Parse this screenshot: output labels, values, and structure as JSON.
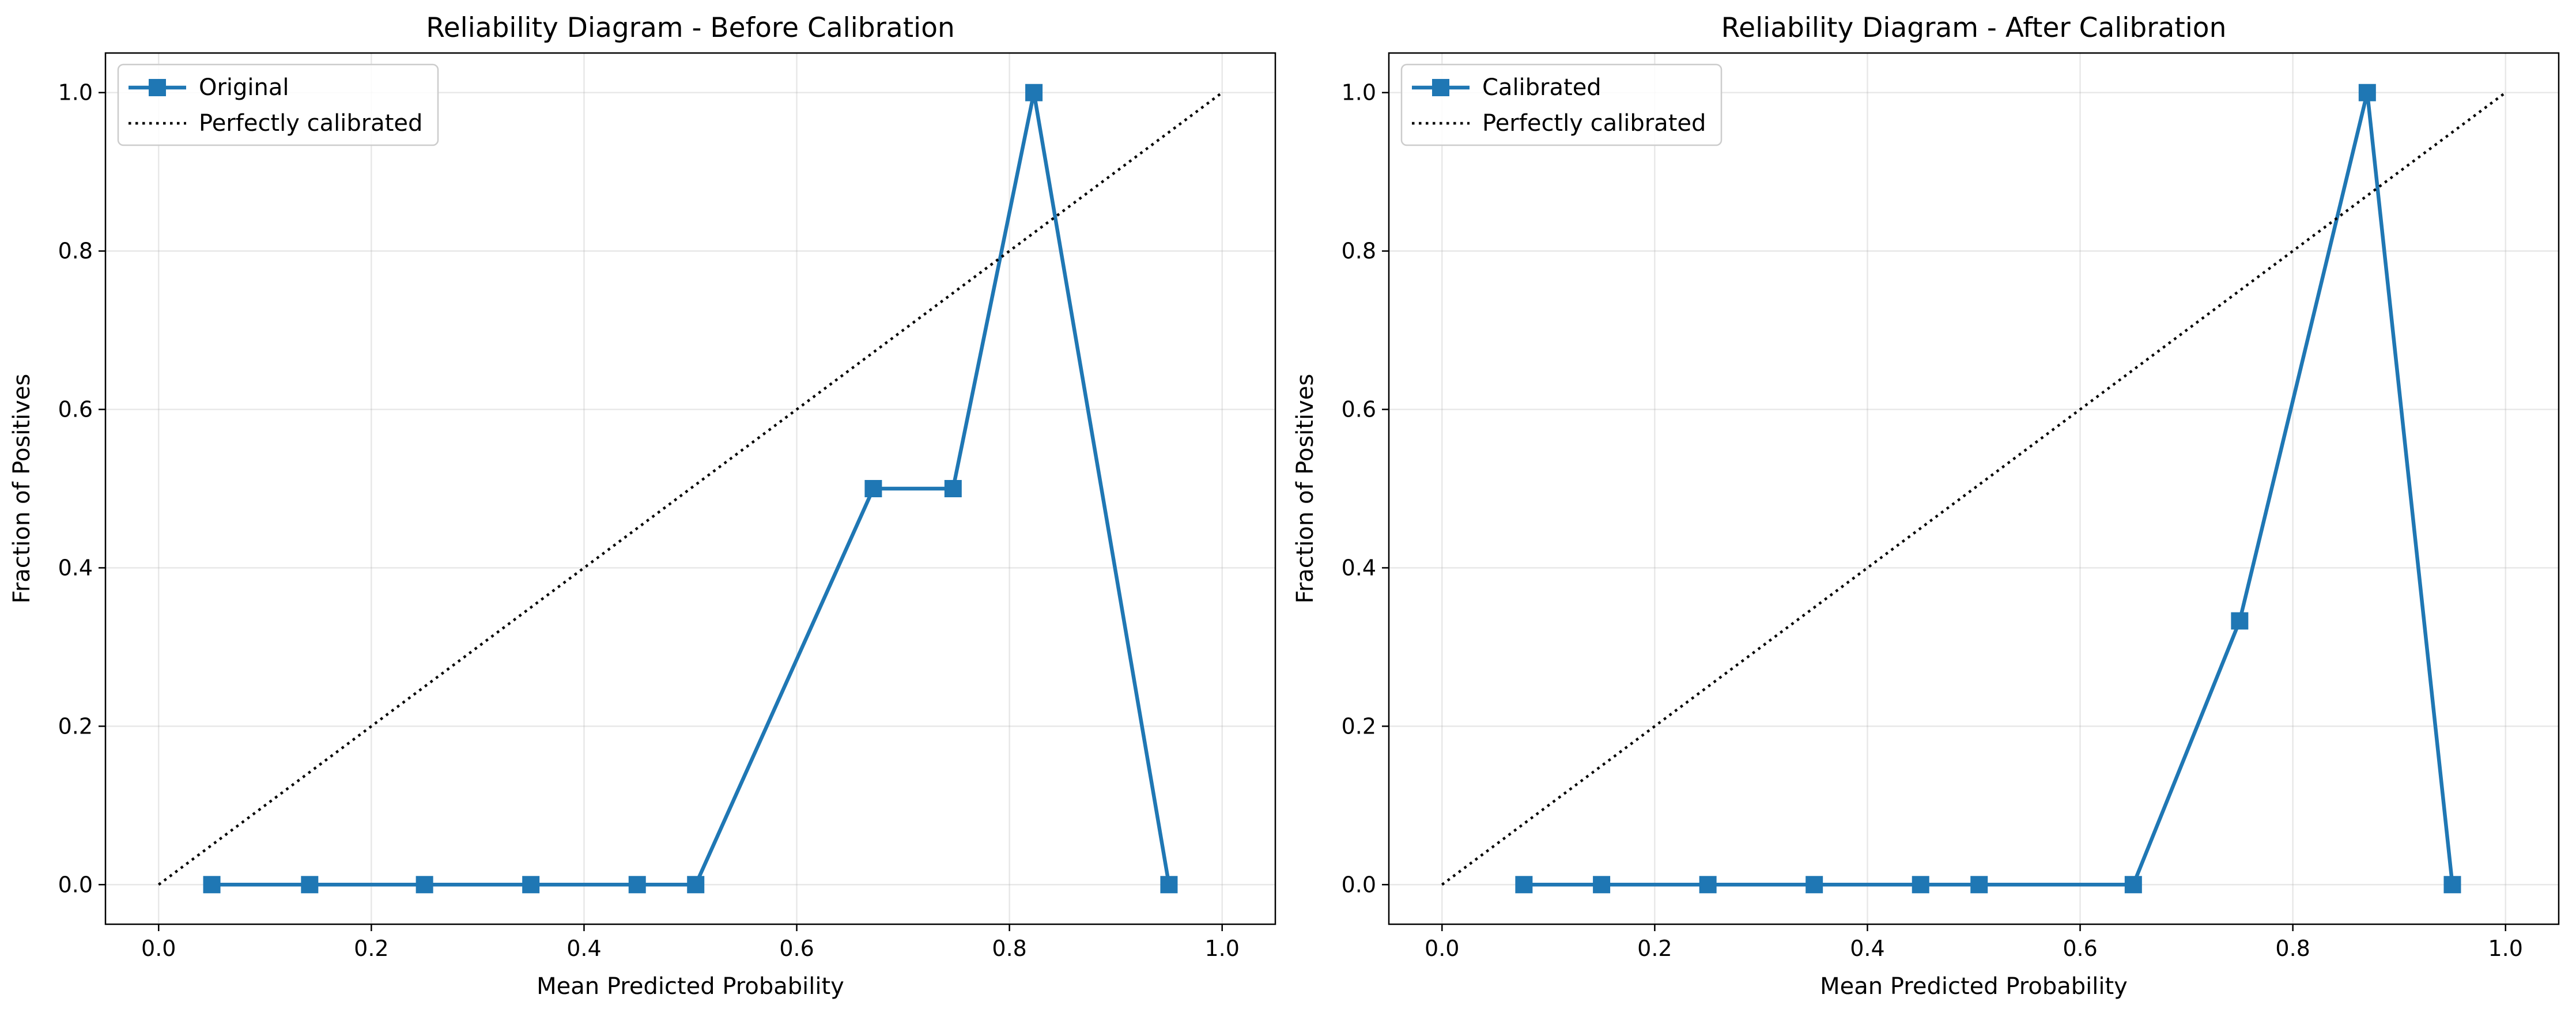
{
  "chart_data": [
    {
      "type": "line",
      "title": "Reliability Diagram - Before Calibration",
      "xlabel": "Mean Predicted Probability",
      "ylabel": "Fraction of Positives",
      "xlim": [
        -0.05,
        1.05
      ],
      "ylim": [
        -0.05,
        1.05
      ],
      "xticks": [
        "0.0",
        "0.2",
        "0.4",
        "0.6",
        "0.8",
        "1.0"
      ],
      "yticks": [
        "0.0",
        "0.2",
        "0.4",
        "0.6",
        "0.8",
        "1.0"
      ],
      "grid": true,
      "legend_position": "upper-left",
      "series": [
        {
          "name": "Original",
          "style": "solid-square-markers",
          "color": "#1f77b4",
          "x": [
            0.05,
            0.142,
            0.25,
            0.35,
            0.45,
            0.505,
            0.672,
            0.747,
            0.823,
            0.95
          ],
          "y": [
            0.0,
            0.0,
            0.0,
            0.0,
            0.0,
            0.0,
            0.5,
            0.5,
            1.0,
            0.0
          ]
        },
        {
          "name": "Perfectly calibrated",
          "style": "dotted",
          "color": "#000000",
          "x": [
            0.0,
            1.0
          ],
          "y": [
            0.0,
            1.0
          ]
        }
      ]
    },
    {
      "type": "line",
      "title": "Reliability Diagram - After Calibration",
      "xlabel": "Mean Predicted Probability",
      "ylabel": "Fraction of Positives",
      "xlim": [
        -0.05,
        1.05
      ],
      "ylim": [
        -0.05,
        1.05
      ],
      "xticks": [
        "0.0",
        "0.2",
        "0.4",
        "0.6",
        "0.8",
        "1.0"
      ],
      "yticks": [
        "0.0",
        "0.2",
        "0.4",
        "0.6",
        "0.8",
        "1.0"
      ],
      "grid": true,
      "legend_position": "upper-left",
      "series": [
        {
          "name": "Calibrated",
          "style": "solid-square-markers",
          "color": "#1f77b4",
          "x": [
            0.077,
            0.15,
            0.25,
            0.35,
            0.45,
            0.505,
            0.65,
            0.75,
            0.87,
            0.95
          ],
          "y": [
            0.0,
            0.0,
            0.0,
            0.0,
            0.0,
            0.0,
            0.0,
            0.333,
            1.0,
            0.0
          ]
        },
        {
          "name": "Perfectly calibrated",
          "style": "dotted",
          "color": "#000000",
          "x": [
            0.0,
            1.0
          ],
          "y": [
            0.0,
            1.0
          ]
        }
      ]
    }
  ]
}
